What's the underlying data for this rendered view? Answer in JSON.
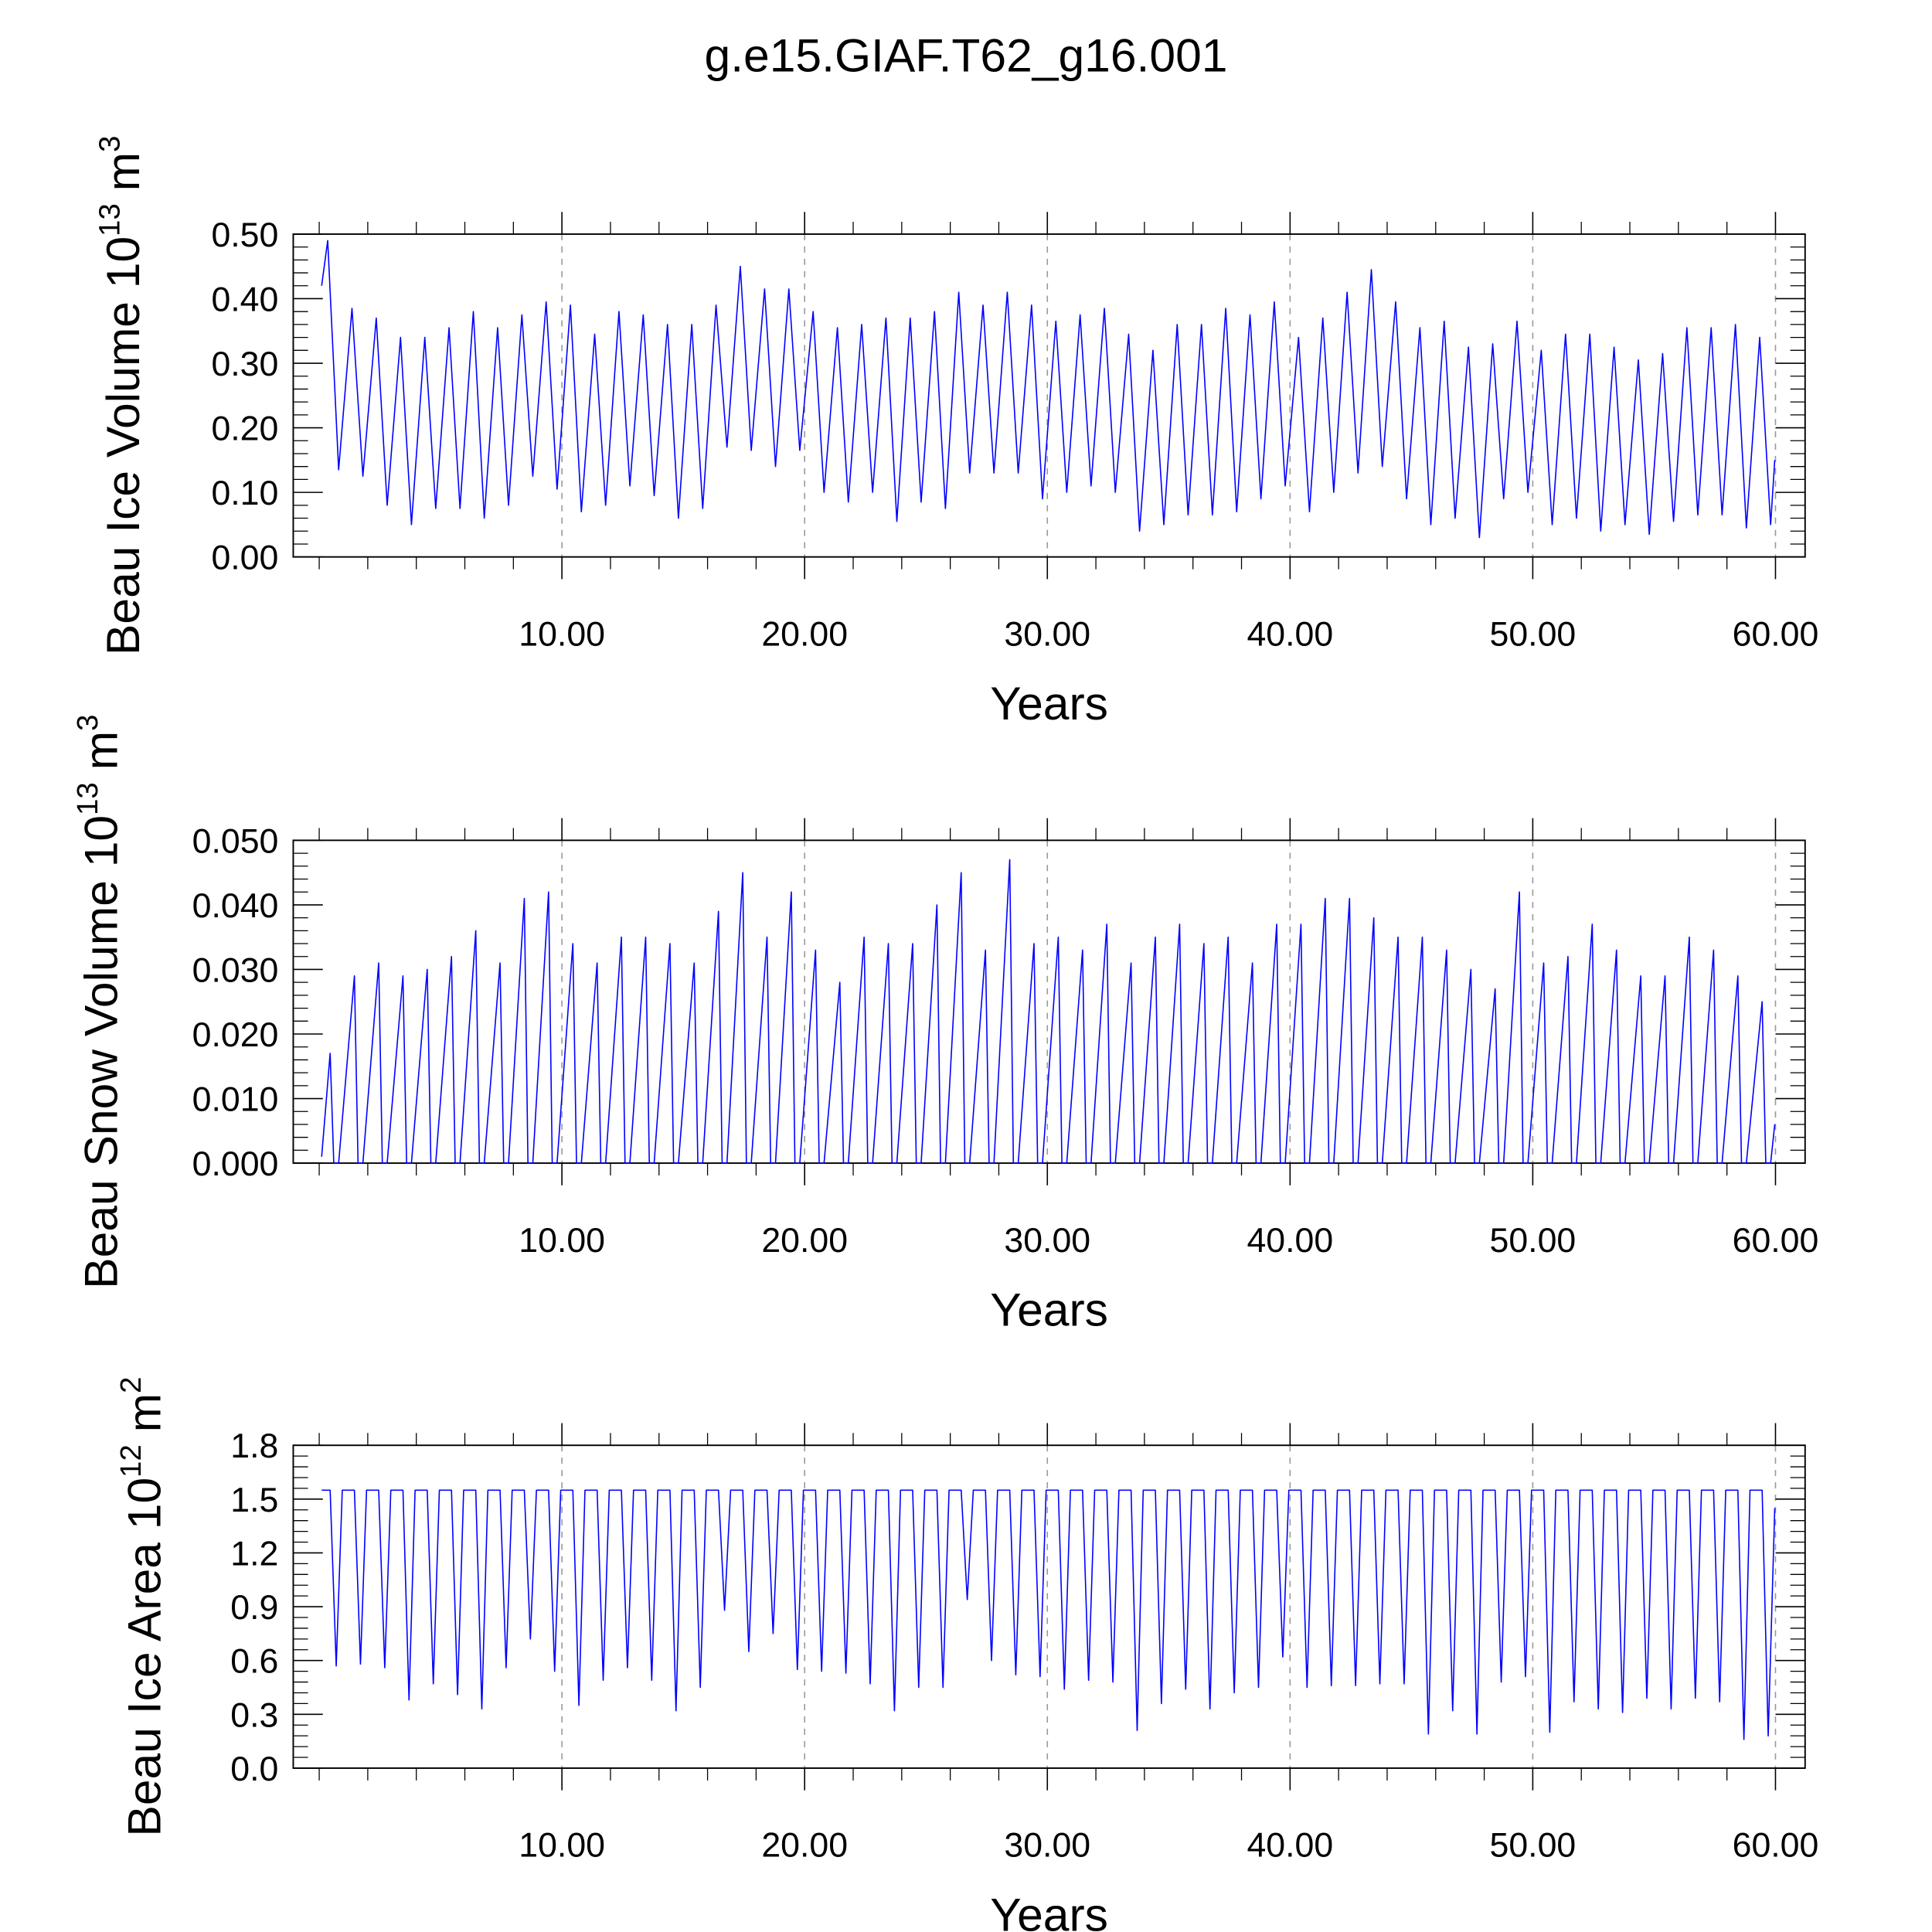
{
  "title": "g.e15.GIAF.T62_g16.001",
  "chart_data": [
    {
      "type": "line",
      "ylabel": "Beau Ice Volume 10",
      "ylabel_exponent": "13",
      "ylabel_unit": "m",
      "ylabel_unit_exponent": "3",
      "xlabel": "Years",
      "color": "#0000ff",
      "grid": true,
      "xlim": [
        -1.07,
        61.22
      ],
      "ylim": [
        0,
        0.5
      ],
      "xticks": [
        {
          "value": 10,
          "label": "10.00"
        },
        {
          "value": 20,
          "label": "20.00"
        },
        {
          "value": 30,
          "label": "30.00"
        },
        {
          "value": 40,
          "label": "40.00"
        },
        {
          "value": 50,
          "label": "50.00"
        },
        {
          "value": 60,
          "label": "60.00"
        }
      ],
      "yticks": [
        {
          "value": 0,
          "label": "0.00"
        },
        {
          "value": 0.1,
          "label": "0.10"
        },
        {
          "value": 0.2,
          "label": "0.20"
        },
        {
          "value": 0.3,
          "label": "0.30"
        },
        {
          "value": 0.4,
          "label": "0.40"
        },
        {
          "value": 0.5,
          "label": "0.50"
        }
      ],
      "x": [
        0.1,
        0.35,
        0.8,
        1.35,
        1.8,
        2.35,
        2.8,
        3.35,
        3.8,
        4.35,
        4.8,
        5.35,
        5.8,
        6.35,
        6.8,
        7.35,
        7.8,
        8.35,
        8.8,
        9.35,
        9.8,
        10.35,
        10.8,
        11.35,
        11.8,
        12.35,
        12.8,
        13.35,
        13.8,
        14.35,
        14.8,
        15.35,
        15.8,
        16.35,
        16.8,
        17.35,
        17.8,
        18.35,
        18.8,
        19.35,
        19.8,
        20.35,
        20.8,
        21.35,
        21.8,
        22.35,
        22.8,
        23.35,
        23.8,
        24.35,
        24.8,
        25.35,
        25.8,
        26.35,
        26.8,
        27.35,
        27.8,
        28.35,
        28.8,
        29.35,
        29.8,
        30.35,
        30.8,
        31.35,
        31.8,
        32.35,
        32.8,
        33.35,
        33.8,
        34.35,
        34.8,
        35.35,
        35.8,
        36.35,
        36.8,
        37.35,
        37.8,
        38.35,
        38.8,
        39.35,
        39.8,
        40.35,
        40.8,
        41.35,
        41.8,
        42.35,
        42.8,
        43.35,
        43.8,
        44.35,
        44.8,
        45.35,
        45.8,
        46.35,
        46.8,
        47.35,
        47.8,
        48.35,
        48.8,
        49.35,
        49.8,
        50.35,
        50.8,
        51.35,
        51.8,
        52.35,
        52.8,
        53.35,
        53.8,
        54.35,
        54.8,
        55.35,
        55.8,
        56.35,
        56.8,
        57.35,
        57.8,
        58.35,
        58.8,
        59.35,
        59.8,
        59.97
      ],
      "values": [
        0.42,
        0.49,
        0.135,
        0.385,
        0.125,
        0.37,
        0.08,
        0.34,
        0.05,
        0.34,
        0.075,
        0.355,
        0.075,
        0.38,
        0.06,
        0.355,
        0.08,
        0.375,
        0.125,
        0.395,
        0.105,
        0.39,
        0.07,
        0.345,
        0.08,
        0.38,
        0.11,
        0.375,
        0.095,
        0.36,
        0.06,
        0.36,
        0.075,
        0.39,
        0.17,
        0.45,
        0.165,
        0.415,
        0.14,
        0.415,
        0.165,
        0.38,
        0.1,
        0.355,
        0.085,
        0.36,
        0.1,
        0.37,
        0.055,
        0.37,
        0.085,
        0.38,
        0.075,
        0.41,
        0.13,
        0.39,
        0.13,
        0.41,
        0.13,
        0.39,
        0.09,
        0.365,
        0.1,
        0.375,
        0.11,
        0.385,
        0.1,
        0.345,
        0.04,
        0.32,
        0.05,
        0.36,
        0.065,
        0.36,
        0.065,
        0.385,
        0.07,
        0.375,
        0.09,
        0.395,
        0.11,
        0.34,
        0.07,
        0.37,
        0.1,
        0.41,
        0.13,
        0.445,
        0.14,
        0.395,
        0.09,
        0.355,
        0.05,
        0.365,
        0.06,
        0.325,
        0.03,
        0.33,
        0.09,
        0.365,
        0.1,
        0.32,
        0.05,
        0.345,
        0.06,
        0.345,
        0.04,
        0.325,
        0.05,
        0.305,
        0.035,
        0.315,
        0.055,
        0.355,
        0.065,
        0.355,
        0.065,
        0.36,
        0.045,
        0.34,
        0.05,
        0.15
      ]
    },
    {
      "type": "line",
      "ylabel": "Beau Snow Volume 10",
      "ylabel_exponent": "13",
      "ylabel_unit": "m",
      "ylabel_unit_exponent": "3",
      "xlabel": "Years",
      "color": "#0000ff",
      "grid": true,
      "xlim": [
        -1.07,
        61.22
      ],
      "ylim": [
        0,
        0.05
      ],
      "xticks": [
        {
          "value": 10,
          "label": "10.00"
        },
        {
          "value": 20,
          "label": "20.00"
        },
        {
          "value": 30,
          "label": "30.00"
        },
        {
          "value": 40,
          "label": "40.00"
        },
        {
          "value": 50,
          "label": "50.00"
        },
        {
          "value": 60,
          "label": "60.00"
        }
      ],
      "yticks": [
        {
          "value": 0,
          "label": "0.000"
        },
        {
          "value": 0.01,
          "label": "0.010"
        },
        {
          "value": 0.02,
          "label": "0.020"
        },
        {
          "value": 0.03,
          "label": "0.030"
        },
        {
          "value": 0.04,
          "label": "0.040"
        },
        {
          "value": 0.05,
          "label": "0.050"
        }
      ],
      "x": [
        0.1,
        0.45,
        0.6,
        0.8,
        1.45,
        1.6,
        1.8,
        2.45,
        2.6,
        2.8,
        3.45,
        3.6,
        3.8,
        4.45,
        4.6,
        4.8,
        5.45,
        5.6,
        5.8,
        6.45,
        6.6,
        6.8,
        7.45,
        7.6,
        7.8,
        8.45,
        8.6,
        8.8,
        9.45,
        9.6,
        9.8,
        10.45,
        10.6,
        10.8,
        11.45,
        11.6,
        11.8,
        12.45,
        12.6,
        12.8,
        13.45,
        13.6,
        13.8,
        14.45,
        14.6,
        14.8,
        15.45,
        15.6,
        15.8,
        16.45,
        16.6,
        16.8,
        17.45,
        17.6,
        17.8,
        18.45,
        18.6,
        18.8,
        19.45,
        19.6,
        19.8,
        20.45,
        20.6,
        20.8,
        21.45,
        21.6,
        21.8,
        22.45,
        22.6,
        22.8,
        23.45,
        23.6,
        23.8,
        24.45,
        24.6,
        24.8,
        25.45,
        25.6,
        25.8,
        26.45,
        26.6,
        26.8,
        27.45,
        27.6,
        27.8,
        28.45,
        28.6,
        28.8,
        29.45,
        29.6,
        29.8,
        30.45,
        30.6,
        30.8,
        31.45,
        31.6,
        31.8,
        32.45,
        32.6,
        32.8,
        33.45,
        33.6,
        33.8,
        34.45,
        34.6,
        34.8,
        35.45,
        35.6,
        35.8,
        36.45,
        36.6,
        36.8,
        37.45,
        37.6,
        37.8,
        38.45,
        38.6,
        38.8,
        39.45,
        39.6,
        39.8,
        40.45,
        40.6,
        40.8,
        41.45,
        41.6,
        41.8,
        42.45,
        42.6,
        42.8,
        43.45,
        43.6,
        43.8,
        44.45,
        44.6,
        44.8,
        45.45,
        45.6,
        45.8,
        46.45,
        46.6,
        46.8,
        47.45,
        47.6,
        47.8,
        48.45,
        48.6,
        48.8,
        49.45,
        49.6,
        49.8,
        50.45,
        50.6,
        50.8,
        51.45,
        51.6,
        51.8,
        52.45,
        52.6,
        52.8,
        53.45,
        53.6,
        53.8,
        54.45,
        54.6,
        54.8,
        55.45,
        55.6,
        55.8,
        56.45,
        56.6,
        56.8,
        57.45,
        57.6,
        57.8,
        58.45,
        58.6,
        58.8,
        59.45,
        59.6,
        59.8,
        59.97
      ],
      "values": [
        0.001,
        0.017,
        0,
        0,
        0.029,
        0,
        0,
        0.031,
        0,
        0,
        0.029,
        0,
        0,
        0.03,
        0,
        0,
        0.032,
        0,
        0,
        0.036,
        0,
        0,
        0.031,
        0,
        0,
        0.041,
        0,
        0,
        0.042,
        0,
        0,
        0.034,
        0,
        0,
        0.031,
        0,
        0,
        0.035,
        0,
        0,
        0.035,
        0,
        0,
        0.034,
        0,
        0,
        0.031,
        0,
        0,
        0.039,
        0,
        0,
        0.045,
        0,
        0,
        0.035,
        0,
        0,
        0.042,
        0,
        0,
        0.033,
        0,
        0,
        0.028,
        0,
        0,
        0.035,
        0,
        0,
        0.034,
        0,
        0,
        0.034,
        0,
        0,
        0.04,
        0,
        0,
        0.045,
        0,
        0,
        0.033,
        0,
        0,
        0.047,
        0,
        0,
        0.034,
        0,
        0,
        0.035,
        0,
        0,
        0.033,
        0,
        0,
        0.037,
        0,
        0,
        0.031,
        0,
        0,
        0.035,
        0,
        0,
        0.037,
        0,
        0,
        0.034,
        0,
        0,
        0.035,
        0,
        0,
        0.031,
        0,
        0,
        0.037,
        0,
        0,
        0.037,
        0,
        0,
        0.041,
        0,
        0,
        0.041,
        0,
        0,
        0.038,
        0,
        0,
        0.035,
        0,
        0,
        0.035,
        0,
        0,
        0.033,
        0,
        0,
        0.03,
        0,
        0,
        0.027,
        0,
        0,
        0.042,
        0,
        0,
        0.031,
        0,
        0,
        0.032,
        0,
        0,
        0.037,
        0,
        0,
        0.033,
        0,
        0,
        0.029,
        0,
        0,
        0.029,
        0,
        0,
        0.035,
        0,
        0,
        0.033,
        0,
        0,
        0.029,
        0,
        0,
        0.025,
        0,
        0,
        0.006
      ]
    },
    {
      "type": "line",
      "ylabel": "Beau Ice Area 10",
      "ylabel_exponent": "12",
      "ylabel_unit": "m",
      "ylabel_unit_exponent": "2",
      "xlabel": "Years",
      "color": "#0000ff",
      "grid": true,
      "xlim": [
        -1.07,
        61.22
      ],
      "ylim": [
        0,
        1.8
      ],
      "xticks": [
        {
          "value": 10,
          "label": "10.00"
        },
        {
          "value": 20,
          "label": "20.00"
        },
        {
          "value": 30,
          "label": "30.00"
        },
        {
          "value": 40,
          "label": "40.00"
        },
        {
          "value": 50,
          "label": "50.00"
        },
        {
          "value": 60,
          "label": "60.00"
        }
      ],
      "yticks": [
        {
          "value": 0,
          "label": "0.0"
        },
        0.3,
        0.6,
        0.9,
        1.2,
        1.5,
        1.8
      ],
      "x": [
        0.1,
        0.45,
        0.7,
        0.95,
        1.45,
        1.7,
        1.95,
        2.45,
        2.7,
        2.95,
        3.45,
        3.7,
        3.95,
        4.45,
        4.7,
        4.95,
        5.45,
        5.7,
        5.95,
        6.45,
        6.7,
        6.95,
        7.45,
        7.7,
        7.95,
        8.45,
        8.7,
        8.95,
        9.45,
        9.7,
        9.95,
        10.45,
        10.7,
        10.95,
        11.45,
        11.7,
        11.95,
        12.45,
        12.7,
        12.95,
        13.45,
        13.7,
        13.95,
        14.45,
        14.7,
        14.95,
        15.45,
        15.7,
        15.95,
        16.45,
        16.7,
        16.95,
        17.45,
        17.7,
        17.95,
        18.45,
        18.7,
        18.95,
        19.45,
        19.7,
        19.95,
        20.45,
        20.7,
        20.95,
        21.45,
        21.7,
        21.95,
        22.45,
        22.7,
        22.95,
        23.45,
        23.7,
        23.95,
        24.45,
        24.7,
        24.95,
        25.45,
        25.7,
        25.95,
        26.45,
        26.7,
        26.95,
        27.45,
        27.7,
        27.95,
        28.45,
        28.7,
        28.95,
        29.45,
        29.7,
        29.95,
        30.45,
        30.7,
        30.95,
        31.45,
        31.7,
        31.95,
        32.45,
        32.7,
        32.95,
        33.45,
        33.7,
        33.95,
        34.45,
        34.7,
        34.95,
        35.45,
        35.7,
        35.95,
        36.45,
        36.7,
        36.95,
        37.45,
        37.7,
        37.95,
        38.45,
        38.7,
        38.95,
        39.45,
        39.7,
        39.95,
        40.45,
        40.7,
        40.95,
        41.45,
        41.7,
        41.95,
        42.45,
        42.7,
        42.95,
        43.45,
        43.7,
        43.95,
        44.45,
        44.7,
        44.95,
        45.45,
        45.7,
        45.95,
        46.45,
        46.7,
        46.95,
        47.45,
        47.7,
        47.95,
        48.45,
        48.7,
        48.95,
        49.45,
        49.7,
        49.95,
        50.45,
        50.7,
        50.95,
        51.45,
        51.7,
        51.95,
        52.45,
        52.7,
        52.95,
        53.45,
        53.7,
        53.95,
        54.45,
        54.7,
        54.95,
        55.45,
        55.7,
        55.95,
        56.45,
        56.7,
        56.95,
        57.45,
        57.7,
        57.95,
        58.45,
        58.7,
        58.95,
        59.45,
        59.7,
        59.97
      ],
      "values": [
        1.55,
        1.55,
        0.57,
        1.55,
        1.55,
        0.58,
        1.55,
        1.55,
        0.56,
        1.55,
        1.55,
        0.38,
        1.55,
        1.55,
        0.47,
        1.55,
        1.55,
        0.41,
        1.55,
        1.55,
        0.33,
        1.55,
        1.55,
        0.56,
        1.55,
        1.55,
        0.72,
        1.55,
        1.55,
        0.54,
        1.55,
        1.55,
        0.35,
        1.55,
        1.55,
        0.49,
        1.55,
        1.55,
        0.56,
        1.55,
        1.55,
        0.49,
        1.55,
        1.55,
        0.32,
        1.55,
        1.55,
        0.45,
        1.55,
        1.55,
        0.88,
        1.55,
        1.55,
        0.65,
        1.55,
        1.55,
        0.75,
        1.55,
        1.55,
        0.55,
        1.55,
        1.55,
        0.54,
        1.55,
        1.55,
        0.53,
        1.55,
        1.55,
        0.47,
        1.55,
        1.55,
        0.32,
        1.55,
        1.55,
        0.45,
        1.55,
        1.55,
        0.45,
        1.55,
        1.55,
        0.94,
        1.55,
        1.55,
        0.6,
        1.55,
        1.55,
        0.52,
        1.55,
        1.55,
        0.51,
        1.55,
        1.55,
        0.44,
        1.55,
        1.55,
        0.49,
        1.55,
        1.55,
        0.48,
        1.55,
        1.55,
        0.21,
        1.55,
        1.55,
        0.36,
        1.55,
        1.55,
        0.44,
        1.55,
        1.55,
        0.33,
        1.55,
        1.55,
        0.42,
        1.55,
        1.55,
        0.45,
        1.55,
        1.55,
        0.62,
        1.55,
        1.55,
        0.45,
        1.55,
        1.55,
        0.46,
        1.55,
        1.55,
        0.46,
        1.55,
        1.55,
        0.47,
        1.55,
        1.55,
        0.47,
        1.55,
        1.55,
        0.19,
        1.55,
        1.55,
        0.32,
        1.55,
        1.55,
        0.19,
        1.55,
        1.55,
        0.48,
        1.55,
        1.55,
        0.51,
        1.55,
        1.55,
        0.2,
        1.55,
        1.55,
        0.37,
        1.55,
        1.55,
        0.33,
        1.55,
        1.55,
        0.31,
        1.55,
        1.55,
        0.39,
        1.55,
        1.55,
        0.33,
        1.55,
        1.55,
        0.39,
        1.55,
        1.55,
        0.37,
        1.55,
        1.55,
        0.16,
        1.55,
        1.55,
        0.18,
        1.45
      ]
    }
  ]
}
